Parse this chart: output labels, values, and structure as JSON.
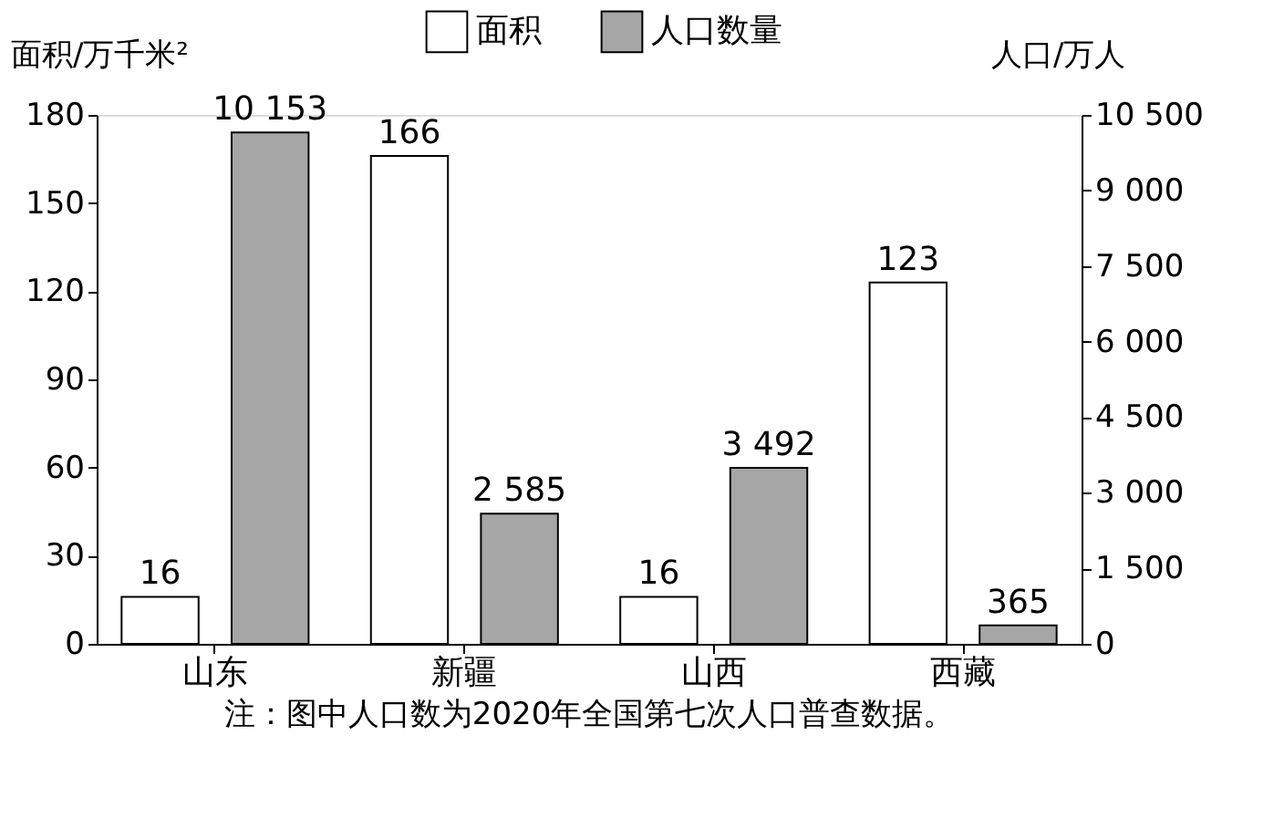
{
  "chart_data": {
    "type": "bar",
    "categories": [
      "山东",
      "新疆",
      "山西",
      "西藏"
    ],
    "series": [
      {
        "name": "面积",
        "color": "#ffffff",
        "values": [
          16,
          166,
          16,
          123
        ],
        "value_labels": [
          "16",
          "166",
          "16",
          "123"
        ]
      },
      {
        "name": "人口数量",
        "color": "#a6a6a6",
        "axis": "y2",
        "values": [
          10153,
          2585,
          3492,
          365
        ],
        "value_labels": [
          "10 153",
          "2 585",
          "3 492",
          "365"
        ]
      }
    ],
    "ylabel": "面积/万千米²",
    "y2label": "人口/万人",
    "ylim": [
      0,
      180
    ],
    "yticks": [
      0,
      30,
      60,
      90,
      120,
      150,
      180
    ],
    "y2lim": [
      0,
      10500
    ],
    "y2ticks": [
      0,
      {
        "value": 1500,
        "label": "1 500"
      },
      {
        "value": 3000,
        "label": "3 000"
      },
      {
        "value": 4500,
        "label": "4 500"
      },
      {
        "value": 6000,
        "label": "6 000"
      },
      {
        "value": 7500,
        "label": "7 500"
      },
      {
        "value": 9000,
        "label": "9 000"
      },
      {
        "value": 10500,
        "label": "10 500"
      }
    ],
    "annotations": [
      "注：图中人口数为2020年全国第七次人口普查数据。"
    ],
    "legend": "top",
    "grid": false
  }
}
